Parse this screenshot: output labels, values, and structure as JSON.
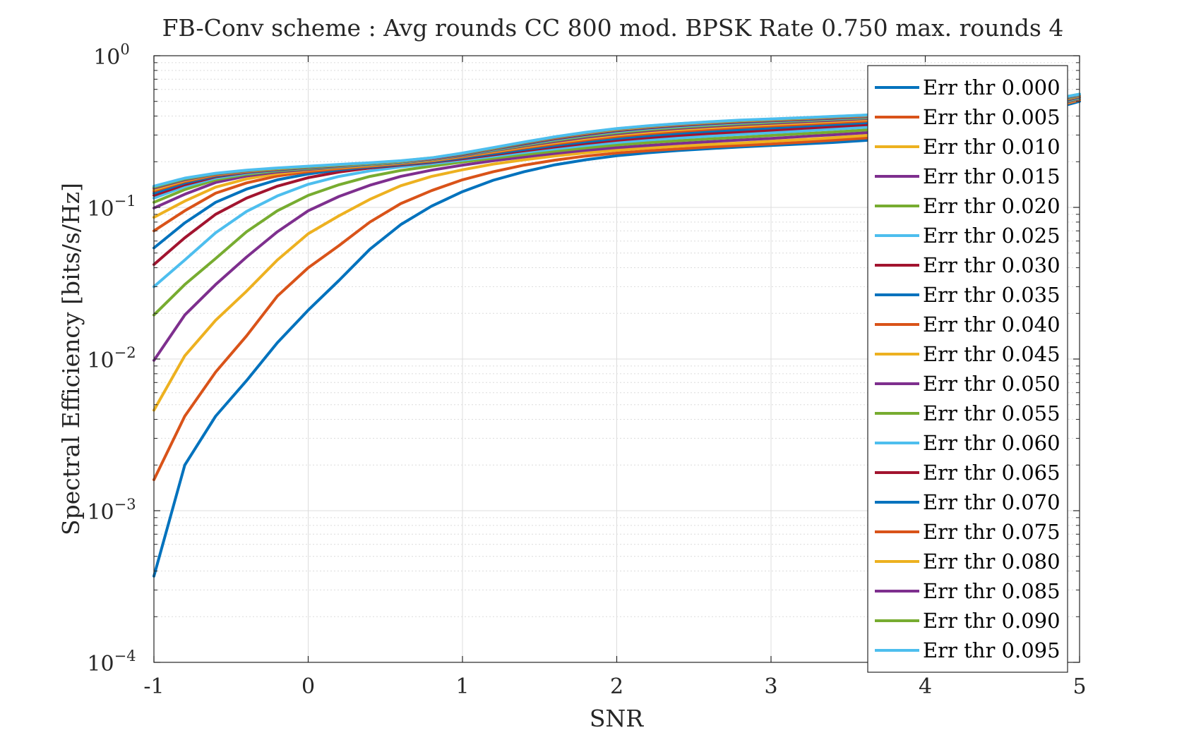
{
  "chart_data": {
    "type": "line",
    "title": "FB-Conv scheme : Avg rounds CC 800 mod. BPSK Rate 0.750 max. rounds 4",
    "xlabel": "SNR",
    "ylabel": "Spectral Efficiency [bits/s/Hz]",
    "xlim": [
      -1,
      5
    ],
    "ylim": [
      0.0001,
      1
    ],
    "yscale": "log",
    "grid": true,
    "legend_position": "right",
    "x_ticks": [
      "-1",
      "0",
      "1",
      "2",
      "3",
      "4",
      "5"
    ],
    "y_ticks": [
      {
        "base": "10",
        "exp": "0"
      },
      {
        "base": "10",
        "exp": "−1"
      },
      {
        "base": "10",
        "exp": "−2"
      },
      {
        "base": "10",
        "exp": "−3"
      },
      {
        "base": "10",
        "exp": "−4"
      }
    ],
    "x": [
      -1,
      -0.8,
      -0.6,
      -0.4,
      -0.2,
      0,
      0.2,
      0.4,
      0.6,
      0.8,
      1,
      1.2,
      1.4,
      1.6,
      1.8,
      2,
      2.2,
      2.4,
      2.6,
      2.8,
      3,
      3.2,
      3.4,
      3.6,
      3.8,
      4,
      4.2,
      4.4,
      4.6,
      4.8,
      5
    ],
    "series": [
      {
        "name": "Err thr 0.000",
        "color": "#0072BD",
        "values": [
          0.00037,
          0.002,
          0.0042,
          0.0072,
          0.0128,
          0.021,
          0.033,
          0.053,
          0.077,
          0.102,
          0.127,
          0.151,
          0.172,
          0.191,
          0.206,
          0.219,
          0.229,
          0.237,
          0.244,
          0.25,
          0.256,
          0.262,
          0.268,
          0.276,
          0.286,
          0.3,
          0.32,
          0.35,
          0.39,
          0.44,
          0.5
        ]
      },
      {
        "name": "Err thr 0.005",
        "color": "#D95319",
        "values": [
          0.0016,
          0.0042,
          0.0082,
          0.0142,
          0.026,
          0.04,
          0.056,
          0.08,
          0.106,
          0.129,
          0.152,
          0.172,
          0.19,
          0.205,
          0.218,
          0.228,
          0.236,
          0.243,
          0.25,
          0.256,
          0.262,
          0.269,
          0.277,
          0.286,
          0.297,
          0.311,
          0.331,
          0.36,
          0.4,
          0.45,
          0.51
        ]
      },
      {
        "name": "Err thr 0.010",
        "color": "#EDB120",
        "values": [
          0.0046,
          0.0105,
          0.018,
          0.028,
          0.045,
          0.067,
          0.088,
          0.113,
          0.139,
          0.16,
          0.177,
          0.193,
          0.206,
          0.218,
          0.229,
          0.238,
          0.246,
          0.253,
          0.26,
          0.266,
          0.273,
          0.28,
          0.288,
          0.297,
          0.308,
          0.321,
          0.34,
          0.368,
          0.406,
          0.455,
          0.515
        ]
      },
      {
        "name": "Err thr 0.015",
        "color": "#7E2F8E",
        "values": [
          0.0098,
          0.0195,
          0.031,
          0.047,
          0.069,
          0.095,
          0.118,
          0.14,
          0.16,
          0.176,
          0.19,
          0.203,
          0.215,
          0.227,
          0.238,
          0.248,
          0.256,
          0.264,
          0.271,
          0.278,
          0.285,
          0.293,
          0.301,
          0.31,
          0.321,
          0.334,
          0.352,
          0.378,
          0.414,
          0.46,
          0.52
        ]
      },
      {
        "name": "Err thr 0.020",
        "color": "#77AC30",
        "values": [
          0.0195,
          0.031,
          0.046,
          0.069,
          0.095,
          0.12,
          0.141,
          0.16,
          0.175,
          0.187,
          0.199,
          0.211,
          0.223,
          0.235,
          0.247,
          0.258,
          0.267,
          0.275,
          0.283,
          0.29,
          0.298,
          0.306,
          0.314,
          0.323,
          0.334,
          0.347,
          0.364,
          0.389,
          0.423,
          0.466,
          0.525
        ]
      },
      {
        "name": "Err thr 0.025",
        "color": "#4DBEEE",
        "values": [
          0.03,
          0.045,
          0.068,
          0.094,
          0.119,
          0.142,
          0.16,
          0.174,
          0.185,
          0.194,
          0.205,
          0.217,
          0.23,
          0.243,
          0.256,
          0.268,
          0.278,
          0.287,
          0.295,
          0.303,
          0.311,
          0.319,
          0.328,
          0.337,
          0.347,
          0.36,
          0.377,
          0.4,
          0.431,
          0.471,
          0.53
        ]
      },
      {
        "name": "Err thr 0.030",
        "color": "#A2142F",
        "values": [
          0.042,
          0.063,
          0.09,
          0.115,
          0.138,
          0.157,
          0.171,
          0.182,
          0.19,
          0.198,
          0.209,
          0.222,
          0.236,
          0.25,
          0.264,
          0.277,
          0.288,
          0.298,
          0.307,
          0.315,
          0.323,
          0.332,
          0.341,
          0.35,
          0.36,
          0.372,
          0.388,
          0.41,
          0.438,
          0.475,
          0.534
        ]
      },
      {
        "name": "Err thr 0.035",
        "color": "#0072BD",
        "values": [
          0.054,
          0.079,
          0.108,
          0.132,
          0.152,
          0.166,
          0.177,
          0.185,
          0.192,
          0.2,
          0.212,
          0.226,
          0.241,
          0.256,
          0.271,
          0.285,
          0.297,
          0.308,
          0.318,
          0.326,
          0.334,
          0.343,
          0.352,
          0.361,
          0.371,
          0.383,
          0.398,
          0.418,
          0.444,
          0.48,
          0.537
        ]
      },
      {
        "name": "Err thr 0.040",
        "color": "#D95319",
        "values": [
          0.07,
          0.095,
          0.124,
          0.145,
          0.161,
          0.172,
          0.18,
          0.187,
          0.194,
          0.202,
          0.215,
          0.23,
          0.246,
          0.262,
          0.278,
          0.293,
          0.306,
          0.317,
          0.327,
          0.336,
          0.344,
          0.352,
          0.361,
          0.37,
          0.38,
          0.391,
          0.405,
          0.425,
          0.45,
          0.485,
          0.54
        ]
      },
      {
        "name": "Err thr 0.045",
        "color": "#EDB120",
        "values": [
          0.086,
          0.11,
          0.136,
          0.154,
          0.167,
          0.176,
          0.183,
          0.189,
          0.196,
          0.204,
          0.217,
          0.233,
          0.25,
          0.267,
          0.284,
          0.3,
          0.313,
          0.325,
          0.335,
          0.344,
          0.352,
          0.36,
          0.369,
          0.378,
          0.387,
          0.398,
          0.412,
          0.431,
          0.455,
          0.489,
          0.543
        ]
      },
      {
        "name": "Err thr 0.050",
        "color": "#7E2F8E",
        "values": [
          0.099,
          0.122,
          0.146,
          0.161,
          0.171,
          0.178,
          0.185,
          0.191,
          0.197,
          0.206,
          0.219,
          0.236,
          0.254,
          0.272,
          0.29,
          0.306,
          0.32,
          0.332,
          0.342,
          0.351,
          0.359,
          0.367,
          0.375,
          0.384,
          0.393,
          0.404,
          0.418,
          0.436,
          0.46,
          0.493,
          0.546
        ]
      },
      {
        "name": "Err thr 0.055",
        "color": "#77AC30",
        "values": [
          0.108,
          0.131,
          0.152,
          0.165,
          0.174,
          0.18,
          0.186,
          0.192,
          0.198,
          0.207,
          0.221,
          0.238,
          0.257,
          0.276,
          0.295,
          0.311,
          0.325,
          0.337,
          0.347,
          0.356,
          0.364,
          0.372,
          0.38,
          0.389,
          0.398,
          0.409,
          0.422,
          0.44,
          0.464,
          0.496,
          0.548
        ]
      },
      {
        "name": "Err thr 0.060",
        "color": "#4DBEEE",
        "values": [
          0.115,
          0.137,
          0.156,
          0.168,
          0.176,
          0.182,
          0.187,
          0.193,
          0.199,
          0.208,
          0.222,
          0.24,
          0.26,
          0.28,
          0.299,
          0.316,
          0.33,
          0.342,
          0.352,
          0.361,
          0.369,
          0.376,
          0.384,
          0.393,
          0.402,
          0.413,
          0.426,
          0.444,
          0.467,
          0.499,
          0.55
        ]
      },
      {
        "name": "Err thr 0.065",
        "color": "#A2142F",
        "values": [
          0.12,
          0.141,
          0.159,
          0.17,
          0.177,
          0.183,
          0.188,
          0.194,
          0.2,
          0.209,
          0.223,
          0.242,
          0.262,
          0.283,
          0.302,
          0.32,
          0.334,
          0.346,
          0.356,
          0.365,
          0.372,
          0.379,
          0.387,
          0.396,
          0.405,
          0.416,
          0.429,
          0.447,
          0.47,
          0.502,
          0.552
        ]
      },
      {
        "name": "Err thr 0.070",
        "color": "#0072BD",
        "values": [
          0.124,
          0.145,
          0.161,
          0.171,
          0.178,
          0.184,
          0.189,
          0.194,
          0.2,
          0.21,
          0.224,
          0.243,
          0.264,
          0.285,
          0.305,
          0.323,
          0.337,
          0.349,
          0.359,
          0.368,
          0.375,
          0.382,
          0.39,
          0.398,
          0.407,
          0.418,
          0.431,
          0.449,
          0.472,
          0.504,
          0.553
        ]
      },
      {
        "name": "Err thr 0.075",
        "color": "#D95319",
        "values": [
          0.128,
          0.148,
          0.163,
          0.172,
          0.179,
          0.185,
          0.19,
          0.195,
          0.201,
          0.21,
          0.225,
          0.244,
          0.266,
          0.287,
          0.307,
          0.325,
          0.339,
          0.351,
          0.361,
          0.37,
          0.377,
          0.384,
          0.392,
          0.4,
          0.409,
          0.42,
          0.433,
          0.451,
          0.474,
          0.506,
          0.554
        ]
      },
      {
        "name": "Err thr 0.080",
        "color": "#EDB120",
        "values": [
          0.131,
          0.15,
          0.165,
          0.173,
          0.18,
          0.185,
          0.19,
          0.195,
          0.201,
          0.211,
          0.226,
          0.245,
          0.267,
          0.289,
          0.309,
          0.327,
          0.341,
          0.353,
          0.363,
          0.372,
          0.379,
          0.386,
          0.394,
          0.402,
          0.411,
          0.422,
          0.435,
          0.453,
          0.476,
          0.508,
          0.555
        ]
      },
      {
        "name": "Err thr 0.085",
        "color": "#7E2F8E",
        "values": [
          0.134,
          0.152,
          0.166,
          0.174,
          0.181,
          0.186,
          0.191,
          0.196,
          0.202,
          0.211,
          0.226,
          0.246,
          0.268,
          0.29,
          0.311,
          0.329,
          0.343,
          0.355,
          0.365,
          0.374,
          0.381,
          0.388,
          0.396,
          0.404,
          0.413,
          0.424,
          0.437,
          0.455,
          0.478,
          0.51,
          0.556
        ]
      },
      {
        "name": "Err thr 0.090",
        "color": "#77AC30",
        "values": [
          0.136,
          0.154,
          0.167,
          0.175,
          0.181,
          0.186,
          0.191,
          0.196,
          0.202,
          0.212,
          0.227,
          0.247,
          0.269,
          0.291,
          0.312,
          0.33,
          0.344,
          0.356,
          0.366,
          0.375,
          0.382,
          0.389,
          0.397,
          0.405,
          0.414,
          0.425,
          0.438,
          0.456,
          0.479,
          0.511,
          0.557
        ]
      },
      {
        "name": "Err thr 0.095",
        "color": "#4DBEEE",
        "values": [
          0.138,
          0.156,
          0.168,
          0.176,
          0.182,
          0.187,
          0.192,
          0.197,
          0.203,
          0.212,
          0.228,
          0.248,
          0.27,
          0.292,
          0.313,
          0.331,
          0.345,
          0.357,
          0.367,
          0.376,
          0.383,
          0.39,
          0.398,
          0.406,
          0.415,
          0.426,
          0.439,
          0.457,
          0.48,
          0.512,
          0.558
        ]
      }
    ]
  }
}
